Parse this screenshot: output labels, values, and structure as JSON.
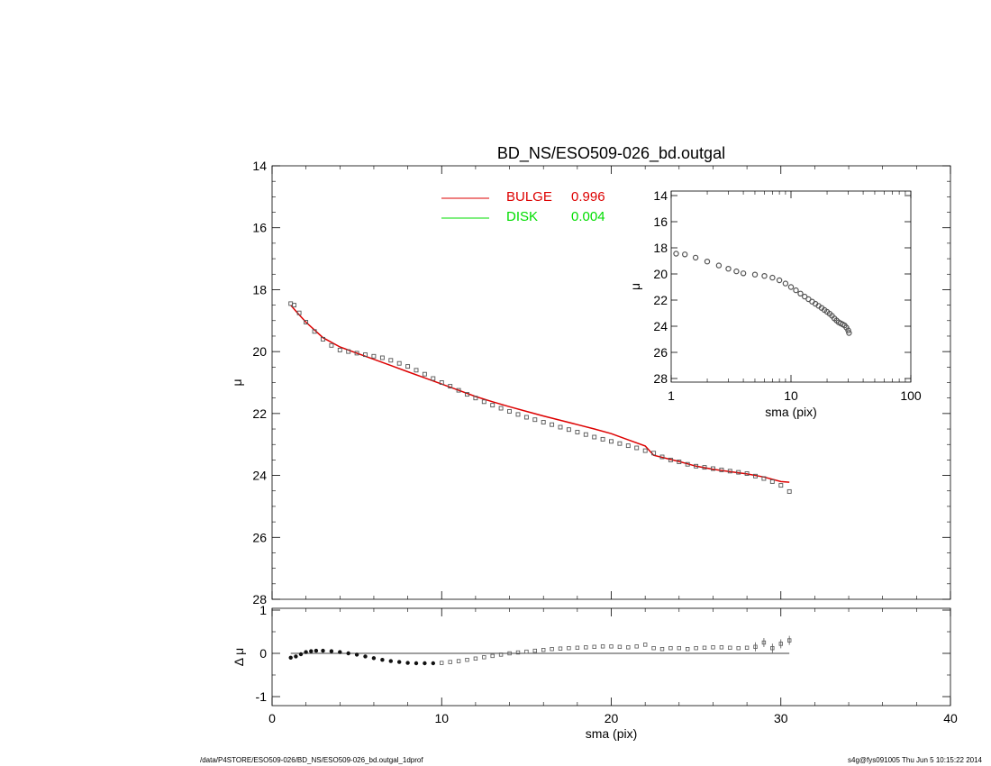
{
  "footer": {
    "left": "/data/P4STORE/ESO509-026/BD_NS/ESO509-026_bd.outgal_1dprof",
    "right": "s4g@fys091005  Thu Jun  5 10:15:22 2014"
  },
  "colors": {
    "bulge": "#dd0000",
    "disk": "#00dd00",
    "data": "#555555",
    "axis": "#000000"
  },
  "chart_data": [
    {
      "type": "scatter",
      "role": "main-profile",
      "title": "BD_NS/ESO509-026_bd.outgal",
      "xlabel": "",
      "ylabel": "μ",
      "xlim": [
        0,
        40
      ],
      "ylim": [
        28,
        14
      ],
      "xticks": [
        0,
        10,
        20,
        30,
        40
      ],
      "yticks": [
        14,
        16,
        18,
        20,
        22,
        24,
        26,
        28
      ],
      "legend_position": "top-center",
      "legend": [
        {
          "name": "BULGE",
          "value": "0.996",
          "color": "#dd0000"
        },
        {
          "name": "DISK",
          "value": "0.004",
          "color": "#00dd00"
        }
      ],
      "series": [
        {
          "name": "data",
          "x": [
            1.1,
            1.3,
            1.6,
            2.0,
            2.5,
            3.0,
            3.5,
            4.0,
            4.5,
            5.0,
            5.5,
            6.0,
            6.5,
            7.0,
            7.5,
            8.0,
            8.5,
            9.0,
            9.5,
            10.0,
            10.5,
            11.0,
            11.5,
            12.0,
            12.5,
            13.0,
            13.5,
            14.0,
            14.5,
            15.0,
            15.5,
            16.0,
            16.5,
            17.0,
            17.5,
            18.0,
            18.5,
            19.0,
            19.5,
            20.0,
            20.5,
            21.0,
            21.5,
            22.0,
            22.5,
            23.0,
            23.5,
            24.0,
            24.5,
            25.0,
            25.5,
            26.0,
            26.5,
            27.0,
            27.5,
            28.0,
            28.5,
            29.0,
            29.5,
            30.0,
            30.5
          ],
          "y": [
            18.45,
            18.5,
            18.75,
            19.05,
            19.35,
            19.6,
            19.8,
            19.95,
            20.0,
            20.05,
            20.1,
            20.15,
            20.2,
            20.28,
            20.38,
            20.48,
            20.6,
            20.73,
            20.87,
            21.0,
            21.12,
            21.25,
            21.38,
            21.5,
            21.62,
            21.73,
            21.83,
            21.93,
            22.03,
            22.12,
            22.2,
            22.28,
            22.36,
            22.44,
            22.52,
            22.6,
            22.68,
            22.76,
            22.83,
            22.9,
            22.97,
            23.04,
            23.11,
            23.2,
            23.28,
            23.4,
            23.5,
            23.56,
            23.64,
            23.7,
            23.74,
            23.78,
            23.82,
            23.86,
            23.9,
            23.94,
            24.02,
            24.1,
            24.2,
            24.32,
            24.52
          ]
        },
        {
          "name": "BULGE",
          "type": "line",
          "x": [
            1.1,
            1.5,
            2.0,
            3.0,
            4.0,
            5.0,
            6.0,
            7.0,
            8.0,
            9.0,
            10.0,
            11.0,
            12.0,
            13.0,
            14.0,
            15.0,
            16.0,
            17.0,
            18.0,
            19.0,
            20.0,
            21.0,
            22.0,
            22.5,
            24.0,
            25.0,
            26.0,
            27.0,
            28.0,
            29.0,
            30.0,
            30.5
          ],
          "y": [
            18.5,
            18.75,
            19.05,
            19.55,
            19.85,
            20.05,
            20.25,
            20.45,
            20.65,
            20.85,
            21.05,
            21.25,
            21.45,
            21.62,
            21.78,
            21.93,
            22.08,
            22.22,
            22.36,
            22.5,
            22.65,
            22.85,
            23.05,
            23.35,
            23.55,
            23.7,
            23.8,
            23.88,
            23.95,
            24.05,
            24.2,
            24.22
          ]
        }
      ]
    },
    {
      "type": "scatter",
      "role": "residuals",
      "title": "",
      "xlabel": "sma (pix)",
      "ylabel": "Δ μ",
      "xlim": [
        0,
        40
      ],
      "ylim": [
        -1,
        1
      ],
      "xticks": [
        0,
        10,
        20,
        30,
        40
      ],
      "yticks": [
        1,
        0,
        -1
      ],
      "series": [
        {
          "name": "residual",
          "x": [
            1.1,
            1.4,
            1.7,
            2.0,
            2.3,
            2.6,
            3.0,
            3.5,
            4.0,
            4.5,
            5.0,
            5.5,
            6.0,
            6.5,
            7.0,
            7.5,
            8.0,
            8.5,
            9.0,
            9.5,
            10.0,
            10.5,
            11.0,
            11.5,
            12.0,
            12.5,
            13.0,
            13.5,
            14.0,
            14.5,
            15.0,
            15.5,
            16.0,
            16.5,
            17.0,
            17.5,
            18.0,
            18.5,
            19.0,
            19.5,
            20.0,
            20.5,
            21.0,
            21.5,
            22.0,
            22.5,
            23.0,
            23.5,
            24.0,
            24.5,
            25.0,
            25.5,
            26.0,
            26.5,
            27.0,
            27.5,
            28.0,
            28.5,
            29.0,
            29.5,
            30.0,
            30.5
          ],
          "y": [
            -0.1,
            -0.07,
            -0.02,
            0.03,
            0.05,
            0.06,
            0.06,
            0.05,
            0.03,
            0.0,
            -0.03,
            -0.07,
            -0.11,
            -0.15,
            -0.18,
            -0.2,
            -0.22,
            -0.23,
            -0.23,
            -0.23,
            -0.22,
            -0.2,
            -0.18,
            -0.15,
            -0.12,
            -0.09,
            -0.06,
            -0.03,
            0.0,
            0.02,
            0.04,
            0.06,
            0.08,
            0.1,
            0.11,
            0.12,
            0.13,
            0.14,
            0.15,
            0.16,
            0.16,
            0.15,
            0.14,
            0.16,
            0.2,
            0.12,
            0.1,
            0.12,
            0.12,
            0.1,
            0.12,
            0.13,
            0.14,
            0.14,
            0.13,
            0.12,
            0.13,
            0.15,
            0.25,
            0.12,
            0.22,
            0.3
          ]
        }
      ]
    },
    {
      "type": "scatter",
      "role": "inset-log-profile",
      "title": "",
      "xlabel": "sma (pix)",
      "ylabel": "μ",
      "xscale": "log",
      "xlim": [
        1,
        100
      ],
      "ylim": [
        28,
        14
      ],
      "xticks": [
        1,
        10,
        100
      ],
      "yticks": [
        14,
        16,
        18,
        20,
        22,
        24,
        26,
        28
      ],
      "series": [
        {
          "name": "data",
          "x": [
            1.1,
            1.3,
            1.6,
            2.0,
            2.5,
            3.0,
            3.5,
            4.0,
            5.0,
            6.0,
            7.0,
            8.0,
            9.0,
            10.0,
            11.0,
            12.0,
            13.0,
            14.0,
            15.0,
            16.0,
            17.0,
            18.0,
            19.0,
            20.0,
            21.0,
            22.0,
            23.0,
            24.0,
            25.0,
            26.0,
            27.0,
            28.0,
            29.0,
            30.0,
            30.5
          ],
          "y": [
            18.45,
            18.5,
            18.75,
            19.05,
            19.35,
            19.6,
            19.8,
            19.95,
            20.05,
            20.15,
            20.28,
            20.48,
            20.73,
            21.0,
            21.25,
            21.5,
            21.73,
            21.93,
            22.12,
            22.28,
            22.44,
            22.6,
            22.76,
            22.9,
            23.04,
            23.2,
            23.4,
            23.56,
            23.7,
            23.78,
            23.86,
            23.94,
            24.1,
            24.32,
            24.52
          ]
        }
      ]
    }
  ]
}
